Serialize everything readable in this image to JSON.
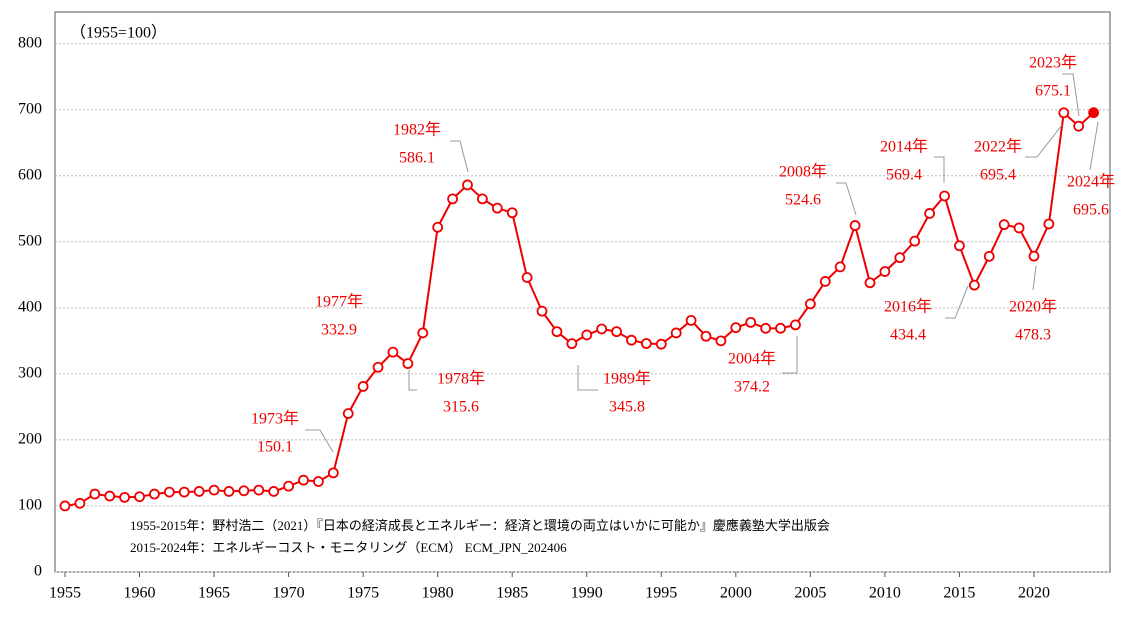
{
  "chart_data": {
    "type": "line",
    "subtitle": "（1955=100）",
    "x": [
      1955,
      1956,
      1957,
      1958,
      1959,
      1960,
      1961,
      1962,
      1963,
      1964,
      1965,
      1966,
      1967,
      1968,
      1969,
      1970,
      1971,
      1972,
      1973,
      1974,
      1975,
      1976,
      1977,
      1978,
      1979,
      1980,
      1981,
      1982,
      1983,
      1984,
      1985,
      1986,
      1987,
      1988,
      1989,
      1990,
      1991,
      1992,
      1993,
      1994,
      1995,
      1996,
      1997,
      1998,
      1999,
      2000,
      2001,
      2002,
      2003,
      2004,
      2005,
      2006,
      2007,
      2008,
      2009,
      2010,
      2011,
      2012,
      2013,
      2014,
      2015,
      2016,
      2017,
      2018,
      2019,
      2020,
      2021,
      2022,
      2023,
      2024
    ],
    "series": [
      {
        "color": "#ee0000",
        "values": [
          100,
          104,
          118,
          115,
          113,
          114,
          118,
          121,
          121,
          122,
          124,
          122,
          123,
          124,
          122,
          130,
          139,
          137,
          150.1,
          240,
          281,
          310,
          332.9,
          315.6,
          362,
          522,
          565,
          586.1,
          565,
          551,
          544,
          446,
          395,
          364,
          345.8,
          359,
          368,
          364,
          351,
          346,
          345,
          362,
          381,
          357,
          350,
          370,
          378,
          369,
          369,
          374.2,
          406,
          440,
          462,
          524.6,
          438,
          455,
          476,
          501,
          543,
          569.4,
          494,
          434.4,
          478,
          526,
          521,
          478.3,
          527,
          695.4,
          675.1,
          695.6
        ]
      }
    ],
    "xlim": [
      1954.33,
      2025.1
    ],
    "xticks": [
      1955,
      1960,
      1965,
      1970,
      1975,
      1980,
      1985,
      1990,
      1995,
      2000,
      2005,
      2010,
      2015,
      2020
    ],
    "ylim": [
      0,
      848
    ],
    "yticks": [
      0,
      100,
      200,
      300,
      400,
      500,
      600,
      700,
      800
    ],
    "grid": true,
    "last_point_filled": true,
    "annotations": [
      "1973年",
      "1977年",
      "1978年",
      "1982年",
      "1989年",
      "2004年",
      "2008年",
      "2014年",
      "2016年",
      "2020年",
      "2022年",
      "2023年",
      "2024年"
    ],
    "notes": [
      "1955-2015年：野村浩二（2021）『日本の経済成長とエネルギー：経済と環境の両立はいかに可能か』慶應義塾大学出版会",
      "2015-2024年：エネルギーコスト・モニタリング（ECM） ECM_JPN_202406"
    ]
  }
}
